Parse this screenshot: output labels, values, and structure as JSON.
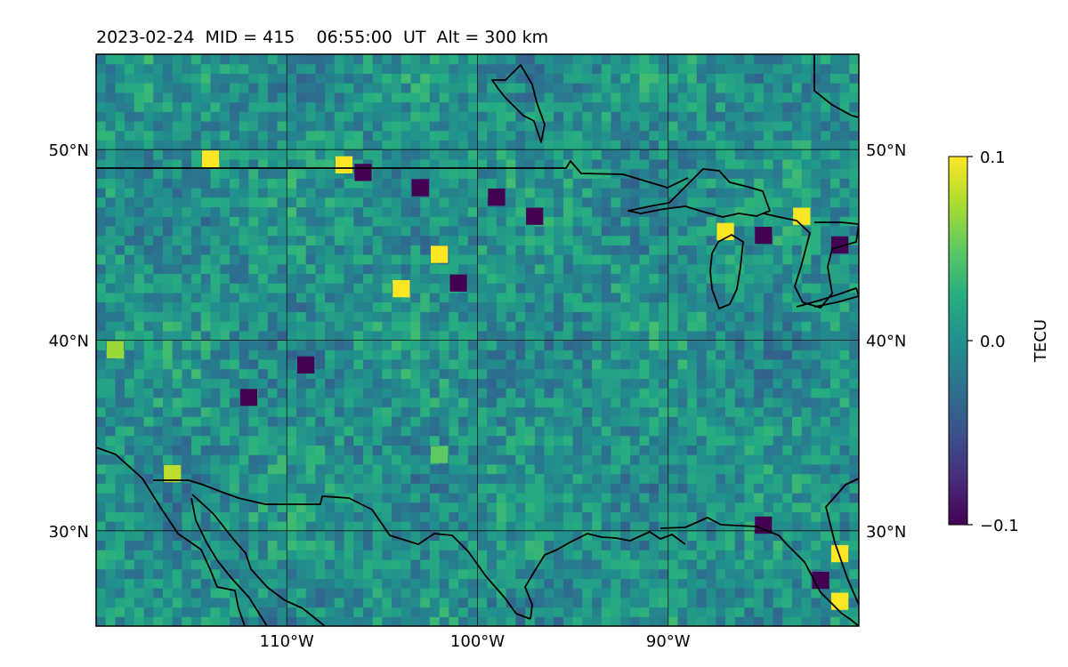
{
  "chart_data": {
    "type": "heatmap",
    "title": "2023-02-24  MID = 415    06:55:00  UT  Alt = 300 km",
    "xlabel": "",
    "ylabel": "",
    "x_range_deg": [
      -120,
      -80
    ],
    "y_range_deg": [
      25,
      55
    ],
    "x_ticks": [
      {
        "value": -110,
        "label": "110°W"
      },
      {
        "value": -100,
        "label": "100°W"
      },
      {
        "value": -90,
        "label": "90°W"
      }
    ],
    "y_ticks": [
      {
        "value": 50,
        "label": "50°N"
      },
      {
        "value": 40,
        "label": "40°N"
      },
      {
        "value": 30,
        "label": "30°N"
      }
    ],
    "grid": true,
    "colorbar": {
      "label": "TECU",
      "min": -0.1,
      "max": 0.1,
      "colormap": "viridis",
      "ticks": [
        {
          "value": 0.1,
          "label": "0.1"
        },
        {
          "value": 0.0,
          "label": "0.0"
        },
        {
          "value": -0.1,
          "label": "−0.1"
        }
      ]
    },
    "notable_anomalies": [
      {
        "lon": -114,
        "lat": 49.5,
        "tecu": 0.1
      },
      {
        "lon": -107,
        "lat": 49.2,
        "tecu": 0.1
      },
      {
        "lon": -106,
        "lat": 48.8,
        "tecu": -0.1
      },
      {
        "lon": -103,
        "lat": 48.0,
        "tecu": -0.1
      },
      {
        "lon": -99,
        "lat": 47.5,
        "tecu": -0.1
      },
      {
        "lon": -97,
        "lat": 46.5,
        "tecu": -0.1
      },
      {
        "lon": -102,
        "lat": 44.5,
        "tecu": 0.1
      },
      {
        "lon": -104,
        "lat": 42.7,
        "tecu": 0.1
      },
      {
        "lon": -101,
        "lat": 43.0,
        "tecu": -0.1
      },
      {
        "lon": -109,
        "lat": 38.7,
        "tecu": -0.1
      },
      {
        "lon": -112,
        "lat": 37.0,
        "tecu": -0.1
      },
      {
        "lon": -102,
        "lat": 34.0,
        "tecu": 0.05
      },
      {
        "lon": -119,
        "lat": 39.5,
        "tecu": 0.07
      },
      {
        "lon": -116,
        "lat": 33.0,
        "tecu": 0.08
      },
      {
        "lon": -87,
        "lat": 45.7,
        "tecu": 0.1
      },
      {
        "lon": -85,
        "lat": 45.5,
        "tecu": -0.1
      },
      {
        "lon": -83,
        "lat": 46.5,
        "tecu": 0.1
      },
      {
        "lon": -81,
        "lat": 45.0,
        "tecu": -0.1
      },
      {
        "lon": -85,
        "lat": 30.3,
        "tecu": -0.1
      },
      {
        "lon": -81,
        "lat": 28.8,
        "tecu": 0.1
      },
      {
        "lon": -82,
        "lat": 27.4,
        "tecu": -0.1
      },
      {
        "lon": -81,
        "lat": 26.3,
        "tecu": 0.1
      }
    ]
  }
}
